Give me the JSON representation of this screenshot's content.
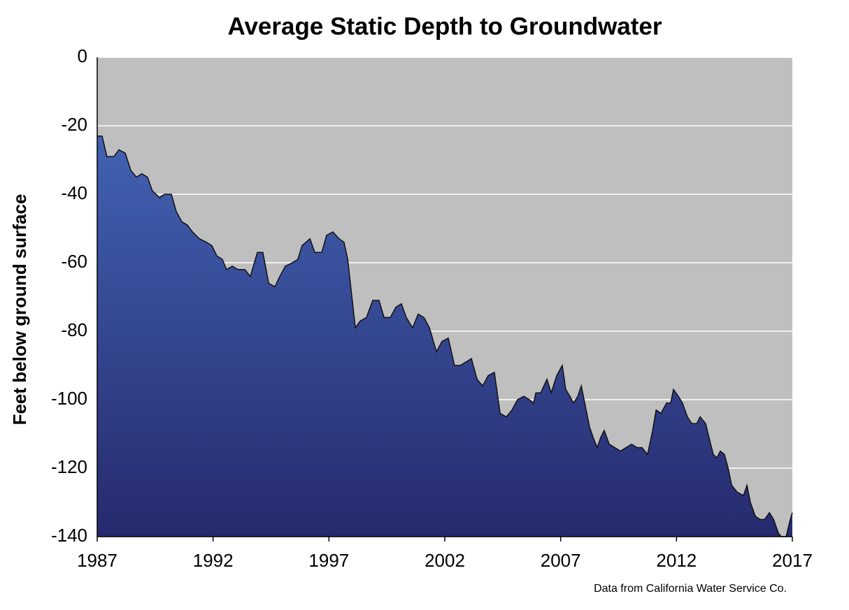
{
  "chart_data": {
    "type": "area",
    "title": "Average Static Depth to Groundwater",
    "ylabel": "Feet below ground surface",
    "source": "Data from California Water Service Co.",
    "x": [
      1987.0,
      1987.21,
      1987.42,
      1987.72,
      1987.94,
      1988.21,
      1988.45,
      1988.69,
      1988.93,
      1989.17,
      1989.38,
      1989.69,
      1989.9,
      1990.2,
      1990.41,
      1990.65,
      1990.89,
      1991.11,
      1991.41,
      1991.71,
      1991.95,
      1992.16,
      1992.4,
      1992.58,
      1992.83,
      1993.07,
      1993.37,
      1993.61,
      1993.91,
      1994.15,
      1994.4,
      1994.67,
      1994.88,
      1995.12,
      1995.42,
      1995.66,
      1995.84,
      1996.18,
      1996.39,
      1996.69,
      1996.9,
      1997.17,
      1997.44,
      1997.65,
      1997.81,
      1997.96,
      1998.14,
      1998.35,
      1998.62,
      1998.89,
      1999.16,
      1999.38,
      1999.65,
      1999.89,
      2000.13,
      2000.34,
      2000.61,
      2000.85,
      2001.1,
      2001.34,
      2001.64,
      2001.88,
      2002.15,
      2002.42,
      2002.67,
      2002.91,
      2003.15,
      2003.39,
      2003.63,
      2003.87,
      2004.14,
      2004.39,
      2004.66,
      2004.9,
      2005.14,
      2005.41,
      2005.65,
      2005.83,
      2005.93,
      2006.14,
      2006.41,
      2006.59,
      2006.83,
      2007.07,
      2007.22,
      2007.4,
      2007.56,
      2007.74,
      2007.89,
      2008.1,
      2008.25,
      2008.4,
      2008.58,
      2008.73,
      2008.88,
      2009.1,
      2009.34,
      2009.58,
      2009.82,
      2010.06,
      2010.3,
      2010.51,
      2010.75,
      2010.97,
      2011.12,
      2011.33,
      2011.57,
      2011.75,
      2011.87,
      2012.08,
      2012.26,
      2012.47,
      2012.66,
      2012.87,
      2013.02,
      2013.26,
      2013.44,
      2013.59,
      2013.74,
      2013.89,
      2014.07,
      2014.23,
      2014.38,
      2014.62,
      2014.89,
      2015.04,
      2015.19,
      2015.4,
      2015.61,
      2015.8,
      2016.01,
      2016.19,
      2016.4,
      2016.52,
      2016.73,
      2016.91,
      2017.0
    ],
    "values": [
      -23,
      -23,
      -29,
      -29,
      -27,
      -28,
      -33,
      -35,
      -34,
      -35,
      -39,
      -41,
      -40,
      -40,
      -45,
      -48,
      -49,
      -51,
      -53,
      -54,
      -55,
      -58,
      -59,
      -62,
      -61,
      -62,
      -62,
      -64,
      -57,
      -57,
      -66,
      -67,
      -64,
      -61,
      -60,
      -59,
      -55,
      -53,
      -57,
      -57,
      -52,
      -51,
      -53,
      -54,
      -59,
      -68,
      -79,
      -77,
      -76,
      -71,
      -71,
      -76,
      -76,
      -73,
      -72,
      -76,
      -79,
      -75,
      -76,
      -79,
      -86,
      -83,
      -82,
      -90,
      -90,
      -89,
      -88,
      -94,
      -96,
      -93,
      -92,
      -104,
      -105,
      -103,
      -100,
      -99,
      -100,
      -101,
      -98,
      -98,
      -94,
      -98,
      -93,
      -90,
      -97,
      -99,
      -101,
      -99,
      -96,
      -103,
      -108,
      -111,
      -114,
      -111,
      -109,
      -113,
      -114,
      -115,
      -114,
      -113,
      -114,
      -114,
      -116,
      -109,
      -103,
      -104,
      -101,
      -101,
      -97,
      -99,
      -101,
      -105,
      -107,
      -107,
      -105,
      -107,
      -112,
      -116,
      -117,
      -115,
      -116,
      -120,
      -125,
      -127,
      -128,
      -125,
      -130,
      -134,
      -135,
      -135,
      -133,
      -135,
      -139,
      -140,
      -140,
      -135,
      -133
    ],
    "gradient": [
      "#4262b2",
      "#262a6e"
    ],
    "background": "#c0bfc0",
    "xlim": [
      1987,
      2017
    ],
    "xticks": [
      1987,
      1992,
      1997,
      2002,
      2007,
      2012,
      2017
    ],
    "ylim": [
      -140,
      0
    ],
    "yticks": [
      0,
      -20,
      -40,
      -60,
      -80,
      -100,
      -120,
      -140
    ],
    "grid": true
  }
}
